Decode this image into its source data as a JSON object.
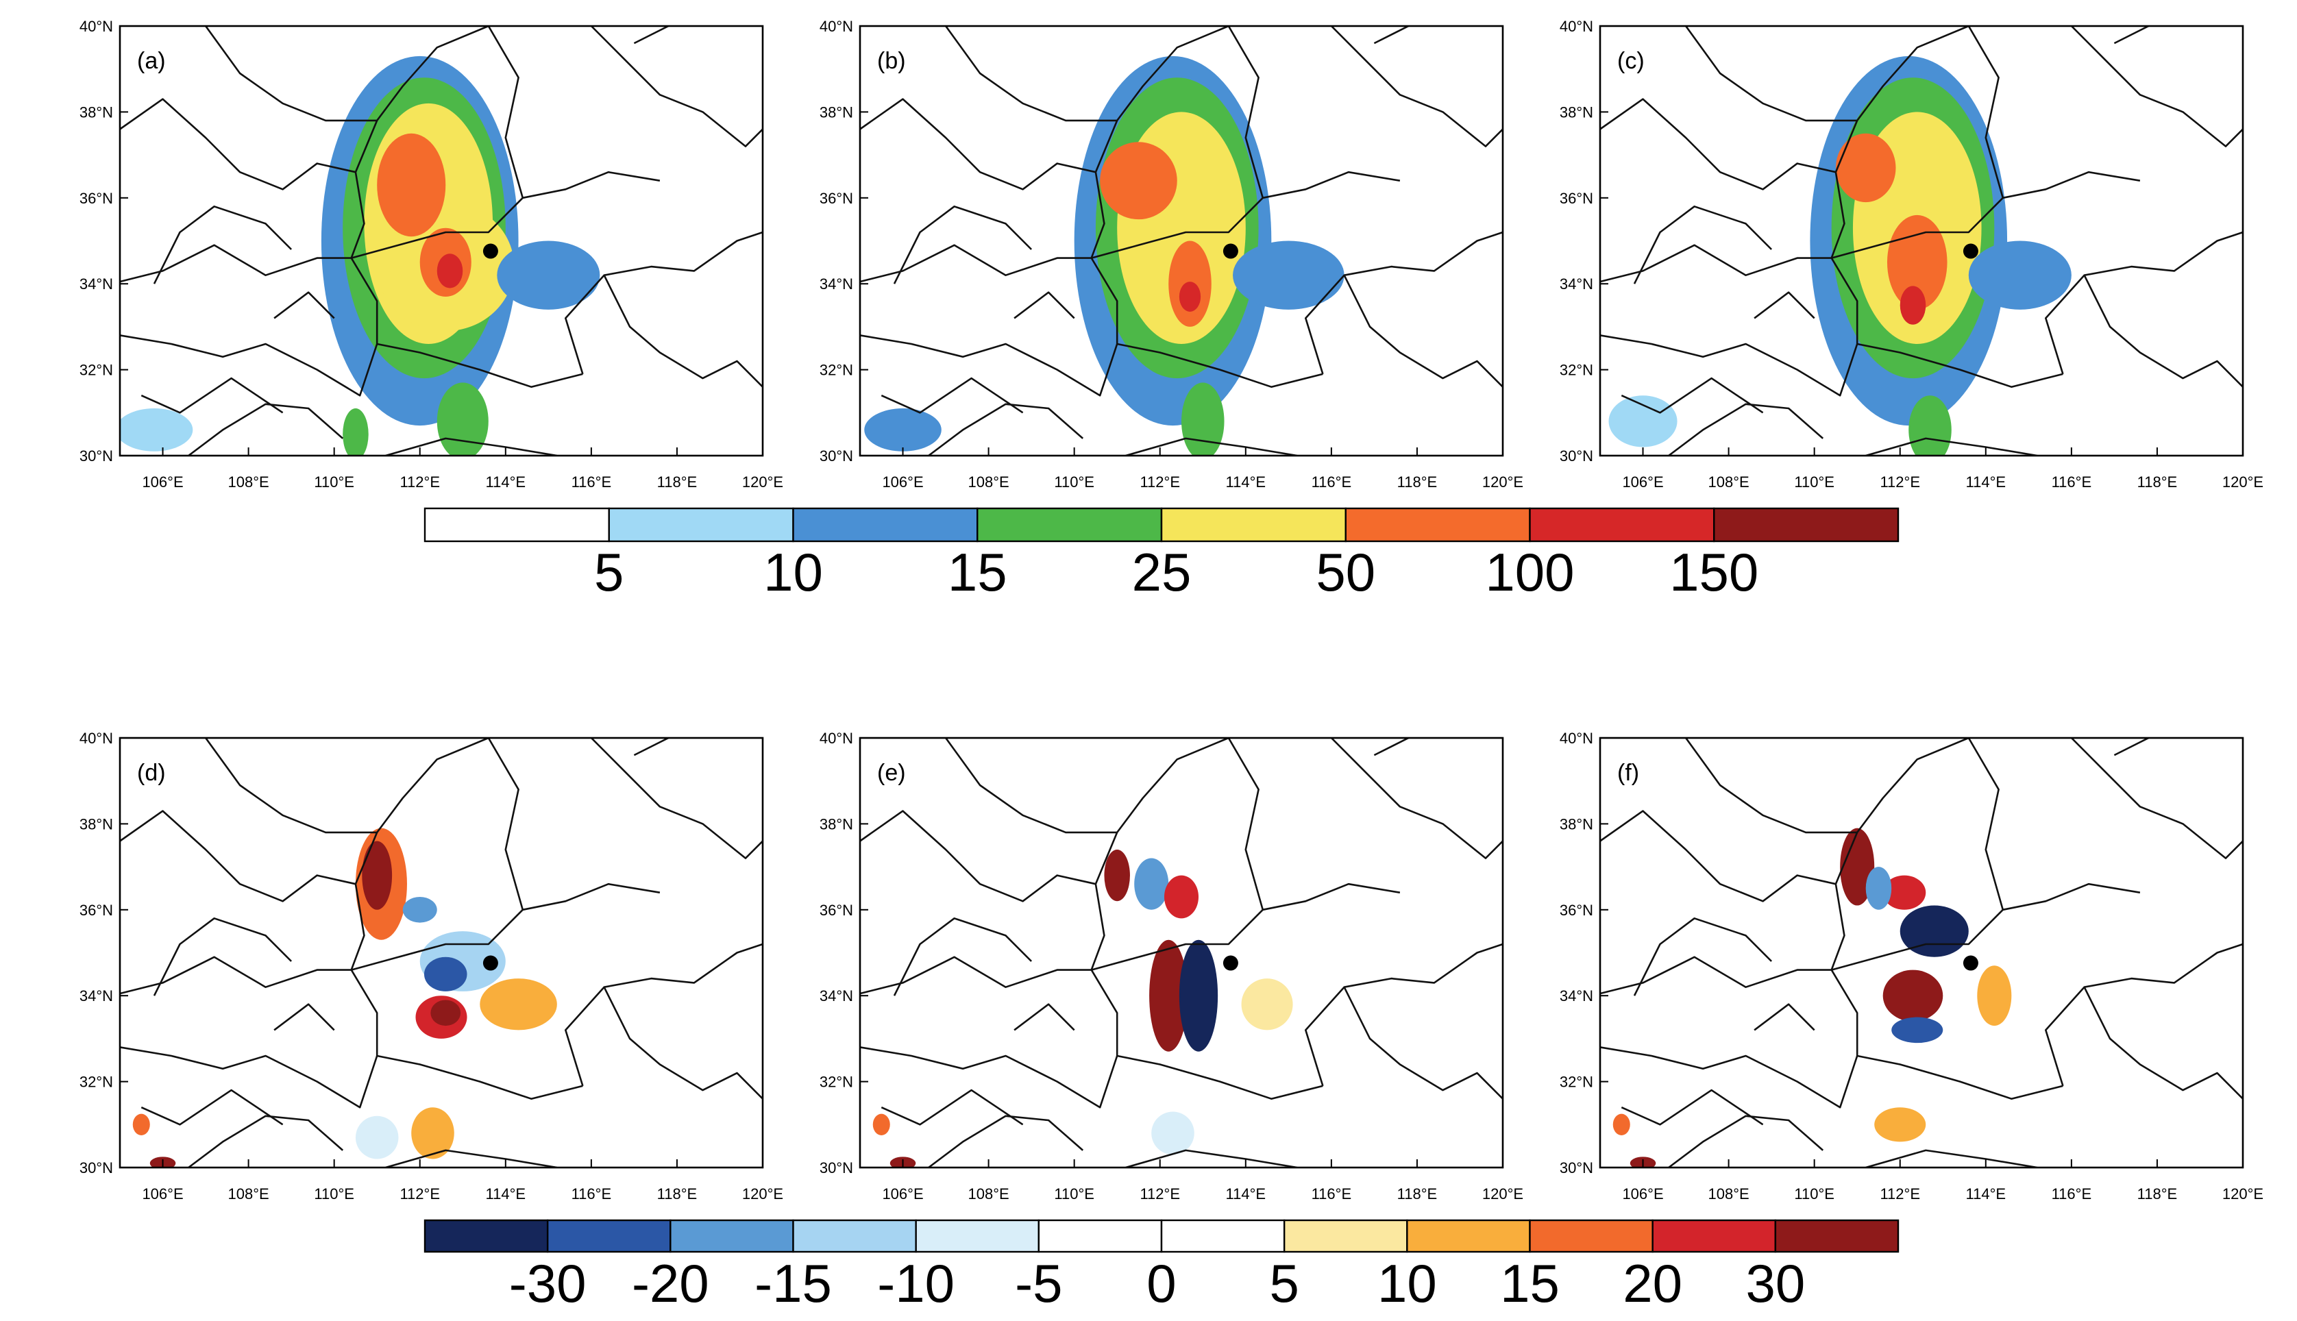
{
  "chart_data": {
    "type": "heatmap",
    "layout": "2 rows x 3 map panels with shared colorbars per row",
    "axes": {
      "x_ticks": [
        "106°E",
        "108°E",
        "110°E",
        "112°E",
        "114°E",
        "116°E",
        "118°E",
        "120°E"
      ],
      "y_ticks": [
        "30°N",
        "32°N",
        "34°N",
        "36°N",
        "38°N",
        "40°N"
      ],
      "xlim": [
        105,
        120
      ],
      "ylim": [
        30,
        40
      ]
    },
    "station_marker": {
      "lon": 113.65,
      "lat": 34.76
    },
    "panels": [
      {
        "label": "(a)",
        "row": 1,
        "col": 1,
        "colorbar": "precip",
        "blobs": [
          {
            "lon": 112.0,
            "lat": 35.0,
            "rx": 2.3,
            "ry": 4.3,
            "level": 2
          },
          {
            "lon": 112.1,
            "lat": 35.3,
            "rx": 1.9,
            "ry": 3.5,
            "level": 3
          },
          {
            "lon": 112.2,
            "lat": 35.4,
            "rx": 1.5,
            "ry": 2.8,
            "level": 4
          },
          {
            "lon": 112.6,
            "lat": 34.4,
            "rx": 1.6,
            "ry": 1.5,
            "level": 4
          },
          {
            "lon": 111.8,
            "lat": 36.3,
            "rx": 0.8,
            "ry": 1.2,
            "level": 5
          },
          {
            "lon": 112.6,
            "lat": 34.5,
            "rx": 0.6,
            "ry": 0.8,
            "level": 5
          },
          {
            "lon": 112.7,
            "lat": 34.3,
            "rx": 0.3,
            "ry": 0.4,
            "level": 6
          },
          {
            "lon": 115.0,
            "lat": 34.2,
            "rx": 1.2,
            "ry": 0.8,
            "level": 2
          },
          {
            "lon": 105.8,
            "lat": 30.6,
            "rx": 0.9,
            "ry": 0.5,
            "level": 1
          },
          {
            "lon": 113.0,
            "lat": 30.8,
            "rx": 0.6,
            "ry": 0.9,
            "level": 3
          },
          {
            "lon": 110.5,
            "lat": 30.5,
            "rx": 0.3,
            "ry": 0.6,
            "level": 3
          }
        ]
      },
      {
        "label": "(b)",
        "row": 1,
        "col": 2,
        "colorbar": "precip",
        "blobs": [
          {
            "lon": 112.3,
            "lat": 35.0,
            "rx": 2.3,
            "ry": 4.3,
            "level": 2
          },
          {
            "lon": 112.4,
            "lat": 35.3,
            "rx": 1.9,
            "ry": 3.5,
            "level": 3
          },
          {
            "lon": 112.5,
            "lat": 35.3,
            "rx": 1.5,
            "ry": 2.7,
            "level": 4
          },
          {
            "lon": 111.5,
            "lat": 36.4,
            "rx": 0.9,
            "ry": 0.9,
            "level": 5
          },
          {
            "lon": 112.7,
            "lat": 34.0,
            "rx": 0.5,
            "ry": 1.0,
            "level": 5
          },
          {
            "lon": 112.7,
            "lat": 33.7,
            "rx": 0.25,
            "ry": 0.35,
            "level": 6
          },
          {
            "lon": 115.0,
            "lat": 34.2,
            "rx": 1.3,
            "ry": 0.8,
            "level": 2
          },
          {
            "lon": 106.0,
            "lat": 30.6,
            "rx": 0.9,
            "ry": 0.5,
            "level": 2
          },
          {
            "lon": 113.0,
            "lat": 30.8,
            "rx": 0.5,
            "ry": 0.9,
            "level": 3
          }
        ]
      },
      {
        "label": "(c)",
        "row": 1,
        "col": 3,
        "colorbar": "precip",
        "blobs": [
          {
            "lon": 112.2,
            "lat": 35.0,
            "rx": 2.3,
            "ry": 4.3,
            "level": 2
          },
          {
            "lon": 112.3,
            "lat": 35.3,
            "rx": 1.9,
            "ry": 3.5,
            "level": 3
          },
          {
            "lon": 112.4,
            "lat": 35.3,
            "rx": 1.5,
            "ry": 2.7,
            "level": 4
          },
          {
            "lon": 111.2,
            "lat": 36.7,
            "rx": 0.7,
            "ry": 0.8,
            "level": 5
          },
          {
            "lon": 112.4,
            "lat": 34.5,
            "rx": 0.7,
            "ry": 1.1,
            "level": 5
          },
          {
            "lon": 112.3,
            "lat": 33.5,
            "rx": 0.3,
            "ry": 0.45,
            "level": 6
          },
          {
            "lon": 114.8,
            "lat": 34.2,
            "rx": 1.2,
            "ry": 0.8,
            "level": 2
          },
          {
            "lon": 106.0,
            "lat": 30.8,
            "rx": 0.8,
            "ry": 0.6,
            "level": 1
          },
          {
            "lon": 112.7,
            "lat": 30.6,
            "rx": 0.5,
            "ry": 0.8,
            "level": 3
          }
        ]
      },
      {
        "label": "(d)",
        "row": 2,
        "col": 1,
        "colorbar": "diff",
        "blobs": [
          {
            "lon": 111.1,
            "lat": 36.6,
            "rx": 0.6,
            "ry": 1.3,
            "level": 9
          },
          {
            "lon": 111.0,
            "lat": 36.8,
            "rx": 0.35,
            "ry": 0.8,
            "level": 11
          },
          {
            "lon": 113.0,
            "lat": 34.8,
            "rx": 1.0,
            "ry": 0.7,
            "level": 3
          },
          {
            "lon": 112.6,
            "lat": 34.5,
            "rx": 0.5,
            "ry": 0.4,
            "level": 1
          },
          {
            "lon": 112.5,
            "lat": 33.5,
            "rx": 0.6,
            "ry": 0.5,
            "level": 10
          },
          {
            "lon": 112.6,
            "lat": 33.6,
            "rx": 0.35,
            "ry": 0.3,
            "level": 11
          },
          {
            "lon": 114.3,
            "lat": 33.8,
            "rx": 0.9,
            "ry": 0.6,
            "level": 8
          },
          {
            "lon": 112.0,
            "lat": 36.0,
            "rx": 0.4,
            "ry": 0.3,
            "level": 2
          },
          {
            "lon": 112.3,
            "lat": 30.8,
            "rx": 0.5,
            "ry": 0.6,
            "level": 8
          },
          {
            "lon": 111.0,
            "lat": 30.7,
            "rx": 0.5,
            "ry": 0.5,
            "level": 4
          },
          {
            "lon": 105.5,
            "lat": 31.0,
            "rx": 0.2,
            "ry": 0.25,
            "level": 9
          },
          {
            "lon": 106.0,
            "lat": 30.1,
            "rx": 0.3,
            "ry": 0.15,
            "level": 11
          }
        ]
      },
      {
        "label": "(e)",
        "row": 2,
        "col": 2,
        "colorbar": "diff",
        "blobs": [
          {
            "lon": 112.2,
            "lat": 34.0,
            "rx": 0.45,
            "ry": 1.3,
            "level": 11
          },
          {
            "lon": 112.9,
            "lat": 34.0,
            "rx": 0.45,
            "ry": 1.3,
            "level": 0
          },
          {
            "lon": 111.0,
            "lat": 36.8,
            "rx": 0.3,
            "ry": 0.6,
            "level": 11
          },
          {
            "lon": 111.8,
            "lat": 36.6,
            "rx": 0.4,
            "ry": 0.6,
            "level": 2
          },
          {
            "lon": 112.5,
            "lat": 36.3,
            "rx": 0.4,
            "ry": 0.5,
            "level": 10
          },
          {
            "lon": 114.5,
            "lat": 33.8,
            "rx": 0.6,
            "ry": 0.6,
            "level": 7
          },
          {
            "lon": 112.3,
            "lat": 30.8,
            "rx": 0.5,
            "ry": 0.5,
            "level": 4
          },
          {
            "lon": 105.5,
            "lat": 31.0,
            "rx": 0.2,
            "ry": 0.25,
            "level": 9
          },
          {
            "lon": 106.0,
            "lat": 30.1,
            "rx": 0.3,
            "ry": 0.15,
            "level": 11
          }
        ]
      },
      {
        "label": "(f)",
        "row": 2,
        "col": 3,
        "colorbar": "diff",
        "blobs": [
          {
            "lon": 111.0,
            "lat": 37.0,
            "rx": 0.4,
            "ry": 0.9,
            "level": 11
          },
          {
            "lon": 112.1,
            "lat": 36.4,
            "rx": 0.5,
            "ry": 0.4,
            "level": 10
          },
          {
            "lon": 112.8,
            "lat": 35.5,
            "rx": 0.8,
            "ry": 0.6,
            "level": 0
          },
          {
            "lon": 112.3,
            "lat": 34.0,
            "rx": 0.7,
            "ry": 0.6,
            "level": 11
          },
          {
            "lon": 112.4,
            "lat": 33.2,
            "rx": 0.6,
            "ry": 0.3,
            "level": 1
          },
          {
            "lon": 111.5,
            "lat": 36.5,
            "rx": 0.3,
            "ry": 0.5,
            "level": 2
          },
          {
            "lon": 114.2,
            "lat": 34.0,
            "rx": 0.4,
            "ry": 0.7,
            "level": 8
          },
          {
            "lon": 112.0,
            "lat": 31.0,
            "rx": 0.6,
            "ry": 0.4,
            "level": 8
          },
          {
            "lon": 105.5,
            "lat": 31.0,
            "rx": 0.2,
            "ry": 0.25,
            "level": 9
          },
          {
            "lon": 106.0,
            "lat": 30.1,
            "rx": 0.3,
            "ry": 0.15,
            "level": 11
          }
        ]
      }
    ],
    "colorbars": {
      "precip": {
        "row": 1,
        "colors": [
          "#ffffff",
          "#a0d9f5",
          "#4a90d4",
          "#4db848",
          "#f5e55a",
          "#f46b2c",
          "#d62728",
          "#8e1a1a"
        ],
        "labels": [
          "5",
          "10",
          "15",
          "25",
          "50",
          "100",
          "150"
        ]
      },
      "diff": {
        "row": 2,
        "colors": [
          "#15265a",
          "#2b57a6",
          "#5a9ad4",
          "#a6d4f2",
          "#d9eef9",
          "#ffffff",
          "#ffffff",
          "#fbe8a0",
          "#f9ae3c",
          "#f26a2c",
          "#d3242b",
          "#8e1a1a"
        ],
        "labels": [
          "-30",
          "-20",
          "-15",
          "-10",
          "-5",
          "0",
          "5",
          "10",
          "15",
          "20",
          "30"
        ]
      }
    }
  }
}
